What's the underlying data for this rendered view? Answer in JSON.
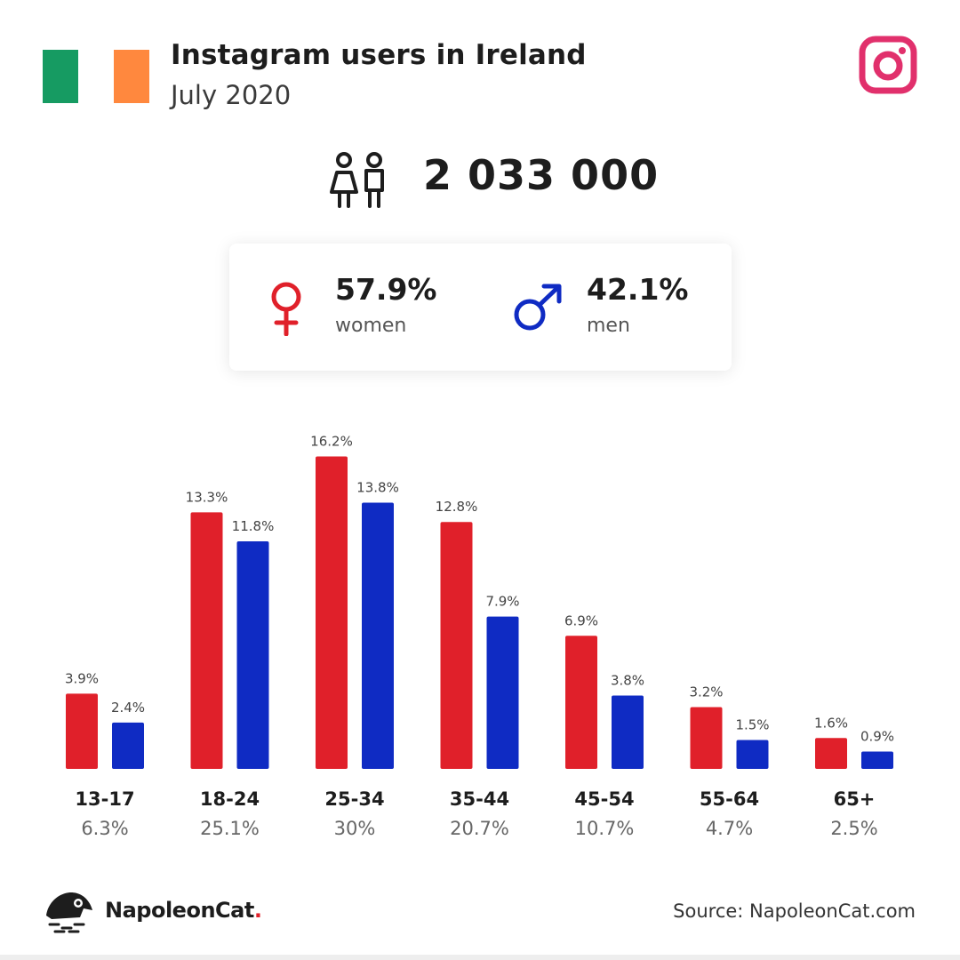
{
  "header": {
    "title": "Instagram users in Ireland",
    "subtitle": "July 2020",
    "flag_colors": [
      "#169b62",
      "#ffffff",
      "#ff883e"
    ],
    "brand_icon": "instagram-icon"
  },
  "summary": {
    "users_icon": "users-icon",
    "total_users": "2 033 000"
  },
  "gender": {
    "women": {
      "percent": "57.9%",
      "label": "women",
      "icon": "female-symbol-icon",
      "color": "#e0202a"
    },
    "men": {
      "percent": "42.1%",
      "label": "men",
      "icon": "male-symbol-icon",
      "color": "#0f2bc3"
    }
  },
  "chart_data": {
    "type": "bar",
    "categories": [
      "13-17",
      "18-24",
      "25-34",
      "35-44",
      "45-54",
      "55-64",
      "65+"
    ],
    "category_totals": [
      "6.3%",
      "25.1%",
      "30%",
      "20.7%",
      "10.7%",
      "4.7%",
      "2.5%"
    ],
    "series": [
      {
        "color": "#e0202a",
        "values": [
          3.9,
          13.3,
          16.2,
          12.8,
          6.9,
          3.2,
          1.6
        ],
        "labels": [
          "3.9%",
          "13.3%",
          "16.2%",
          "12.8%",
          "6.9%",
          "3.2%",
          "1.6%"
        ]
      },
      {
        "color": "#0f2bc3",
        "values": [
          2.4,
          11.8,
          13.8,
          7.9,
          3.8,
          1.5,
          0.9
        ],
        "labels": [
          "2.4%",
          "11.8%",
          "13.8%",
          "7.9%",
          "3.8%",
          "1.5%",
          "0.9%"
        ]
      }
    ],
    "grid": false,
    "legend": "none"
  },
  "footer": {
    "brand": "NapoleonCat",
    "brand_dot": ".",
    "logo_icon": "napoleoncat-logo-icon",
    "source": "Source: NapoleonCat.com"
  }
}
